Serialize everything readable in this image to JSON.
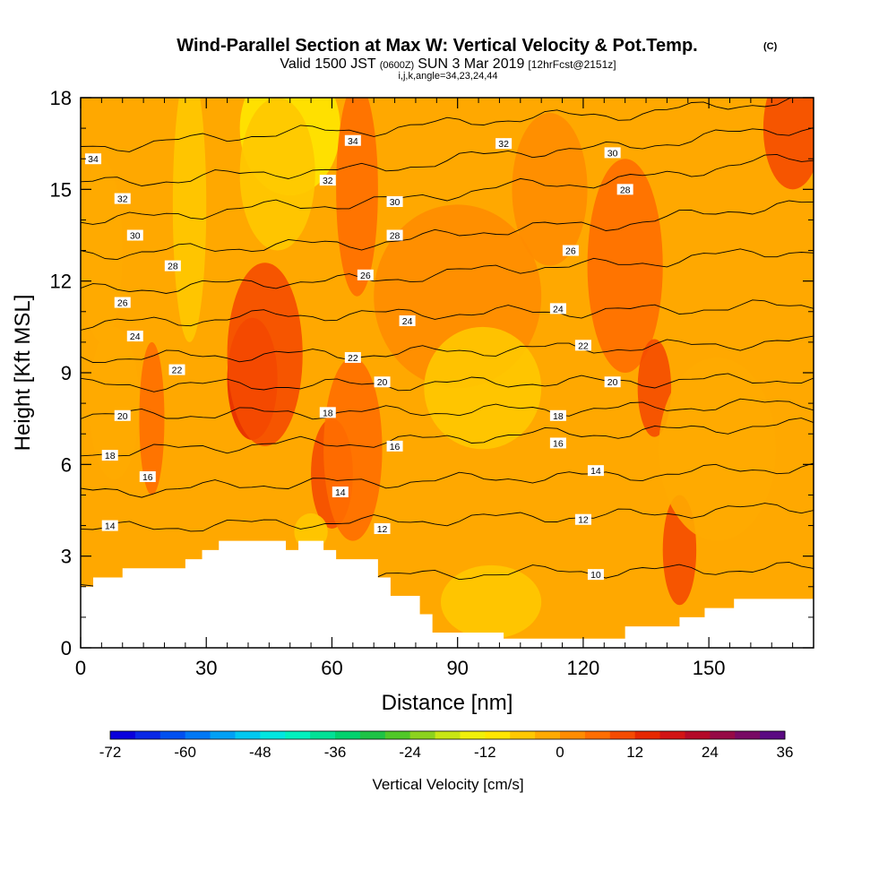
{
  "chart_data": {
    "type": "contour_cross_section",
    "title": "Wind-Parallel Section at Max W: Vertical Velocity & Pot.Temp.",
    "copyright": "(C)",
    "subtitle_prefix": "Valid 1500 JST",
    "subtitle_utc": "(0600Z)",
    "subtitle_date": "SUN 3 Mar 2019",
    "subtitle_forecast": "[12hrFcst@2151z]",
    "subtitle2": "i,j,k,angle=34,23,24,44",
    "xlabel": "Distance [nm]",
    "ylabel": "Height [Kft MSL]",
    "xlim": [
      0,
      175
    ],
    "ylim": [
      0,
      18
    ],
    "xticks": [
      0,
      30,
      60,
      90,
      120,
      150
    ],
    "yticks": [
      0,
      3,
      6,
      9,
      12,
      15,
      18
    ],
    "colorbar": {
      "label": "Vertical Velocity [cm/s]",
      "ticks": [
        -72,
        -60,
        -48,
        -36,
        -24,
        -12,
        0,
        12,
        24,
        36
      ],
      "range": [
        -72,
        36
      ],
      "step": 4,
      "colors": [
        "#0a00dc",
        "#0a28e6",
        "#0050f0",
        "#0078f5",
        "#00a0f5",
        "#00c8f0",
        "#00e6e0",
        "#00f0be",
        "#00e196",
        "#00d26e",
        "#1ec346",
        "#50c828",
        "#8cd21e",
        "#c8e614",
        "#f0f00a",
        "#ffe600",
        "#ffc800",
        "#ffaa00",
        "#ff8c00",
        "#ff6e00",
        "#f54b00",
        "#e62800",
        "#d21414",
        "#b40a28",
        "#960a46",
        "#780a64",
        "#5a0a82"
      ]
    },
    "theta_contours": [
      {
        "value": 10,
        "heights_kft": [
          2.1,
          2.3,
          2.5,
          2.6
        ]
      },
      {
        "value": 12,
        "heights_kft": [
          3.9,
          4.1,
          4.3,
          4.6
        ]
      },
      {
        "value": 14,
        "heights_kft": [
          5.1,
          5.4,
          5.6,
          5.9
        ]
      },
      {
        "value": 16,
        "heights_kft": [
          6.4,
          6.7,
          7.0,
          7.3
        ]
      },
      {
        "value": 18,
        "heights_kft": [
          7.6,
          7.7,
          7.8,
          8.0
        ]
      },
      {
        "value": 20,
        "heights_kft": [
          8.6,
          8.6,
          8.7,
          8.8
        ]
      },
      {
        "value": 22,
        "heights_kft": [
          9.5,
          9.6,
          9.8,
          10.0
        ]
      },
      {
        "value": 24,
        "heights_kft": [
          10.6,
          10.9,
          11.0,
          11.2
        ]
      },
      {
        "value": 26,
        "heights_kft": [
          11.7,
          12.0,
          12.5,
          13.0
        ]
      },
      {
        "value": 28,
        "heights_kft": [
          12.9,
          13.2,
          13.8,
          14.5
        ]
      },
      {
        "value": 30,
        "heights_kft": [
          14.0,
          14.5,
          15.2,
          16.0
        ]
      },
      {
        "value": 32,
        "heights_kft": [
          15.2,
          15.6,
          16.3,
          17.0
        ]
      },
      {
        "value": 34,
        "heights_kft": [
          16.4,
          16.9,
          17.4,
          17.9
        ]
      }
    ],
    "theta_labels": [
      {
        "text": "34",
        "x_nm": 3,
        "y_kft": 16.0
      },
      {
        "text": "32",
        "x_nm": 10,
        "y_kft": 14.7
      },
      {
        "text": "30",
        "x_nm": 13,
        "y_kft": 13.5
      },
      {
        "text": "28",
        "x_nm": 22,
        "y_kft": 12.5
      },
      {
        "text": "26",
        "x_nm": 10,
        "y_kft": 11.3
      },
      {
        "text": "24",
        "x_nm": 13,
        "y_kft": 10.2
      },
      {
        "text": "22",
        "x_nm": 23,
        "y_kft": 9.1
      },
      {
        "text": "20",
        "x_nm": 10,
        "y_kft": 7.6
      },
      {
        "text": "18",
        "x_nm": 7,
        "y_kft": 6.3
      },
      {
        "text": "16",
        "x_nm": 16,
        "y_kft": 5.6
      },
      {
        "text": "14",
        "x_nm": 7,
        "y_kft": 4.0
      },
      {
        "text": "34",
        "x_nm": 65,
        "y_kft": 16.6
      },
      {
        "text": "32",
        "x_nm": 59,
        "y_kft": 15.3
      },
      {
        "text": "30",
        "x_nm": 75,
        "y_kft": 14.6
      },
      {
        "text": "28",
        "x_nm": 75,
        "y_kft": 13.5
      },
      {
        "text": "26",
        "x_nm": 68,
        "y_kft": 12.2
      },
      {
        "text": "24",
        "x_nm": 78,
        "y_kft": 10.7
      },
      {
        "text": "22",
        "x_nm": 65,
        "y_kft": 9.5
      },
      {
        "text": "20",
        "x_nm": 72,
        "y_kft": 8.7
      },
      {
        "text": "18",
        "x_nm": 59,
        "y_kft": 7.7
      },
      {
        "text": "16",
        "x_nm": 75,
        "y_kft": 6.6
      },
      {
        "text": "14",
        "x_nm": 62,
        "y_kft": 5.1
      },
      {
        "text": "12",
        "x_nm": 72,
        "y_kft": 3.9
      },
      {
        "text": "32",
        "x_nm": 101,
        "y_kft": 16.5
      },
      {
        "text": "30",
        "x_nm": 127,
        "y_kft": 16.2
      },
      {
        "text": "28",
        "x_nm": 130,
        "y_kft": 15.0
      },
      {
        "text": "26",
        "x_nm": 117,
        "y_kft": 13.0
      },
      {
        "text": "24",
        "x_nm": 114,
        "y_kft": 11.1
      },
      {
        "text": "22",
        "x_nm": 120,
        "y_kft": 9.9
      },
      {
        "text": "20",
        "x_nm": 127,
        "y_kft": 8.7
      },
      {
        "text": "18",
        "x_nm": 114,
        "y_kft": 7.6
      },
      {
        "text": "16",
        "x_nm": 114,
        "y_kft": 6.7
      },
      {
        "text": "14",
        "x_nm": 123,
        "y_kft": 5.8
      },
      {
        "text": "12",
        "x_nm": 120,
        "y_kft": 4.2
      },
      {
        "text": "10",
        "x_nm": 123,
        "y_kft": 2.4
      }
    ],
    "terrain": {
      "x_nm": [
        0,
        3,
        3,
        10,
        10,
        16,
        16,
        25,
        25,
        27,
        27,
        29,
        29,
        33,
        33,
        49,
        49,
        52,
        52,
        58,
        58,
        61,
        61,
        71,
        71,
        74,
        74,
        81,
        81,
        84,
        84,
        101,
        101,
        103,
        103,
        107,
        107,
        113,
        113,
        117,
        117,
        130,
        130,
        143,
        143,
        149,
        149,
        156,
        156,
        175
      ],
      "height_kft": [
        2.0,
        2.0,
        2.3,
        2.3,
        2.6,
        2.6,
        2.6,
        2.6,
        2.9,
        2.9,
        2.9,
        2.9,
        3.2,
        3.2,
        3.5,
        3.5,
        3.2,
        3.2,
        3.5,
        3.5,
        3.2,
        3.2,
        2.9,
        2.9,
        2.3,
        2.3,
        1.7,
        1.7,
        1.1,
        1.1,
        0.5,
        0.5,
        0.3,
        0.3,
        0.3,
        0.3,
        0.3,
        0.3,
        0.3,
        0.3,
        0.3,
        0.3,
        0.7,
        0.7,
        1.0,
        1.0,
        1.3,
        1.3,
        1.6,
        1.6
      ]
    },
    "w_blobs": [
      {
        "x_nm": 50,
        "y_kft": 17.0,
        "rx_nm": 12,
        "ry_kft": 2.2,
        "w": -12
      },
      {
        "x_nm": 47,
        "y_kft": 15.5,
        "rx_nm": 9,
        "ry_kft": 2.5,
        "w": -8
      },
      {
        "x_nm": 26,
        "y_kft": 14.5,
        "rx_nm": 4,
        "ry_kft": 4.5,
        "w": -5
      },
      {
        "x_nm": 66,
        "y_kft": 15.0,
        "rx_nm": 5,
        "ry_kft": 3.5,
        "w": 6
      },
      {
        "x_nm": 41,
        "y_kft": 8.8,
        "rx_nm": 6,
        "ry_kft": 2.0,
        "w": 14
      },
      {
        "x_nm": 44,
        "y_kft": 9.6,
        "rx_nm": 9,
        "ry_kft": 3.0,
        "w": 8
      },
      {
        "x_nm": 60,
        "y_kft": 5.7,
        "rx_nm": 5,
        "ry_kft": 1.8,
        "w": 10
      },
      {
        "x_nm": 65,
        "y_kft": 6.5,
        "rx_nm": 7,
        "ry_kft": 3.0,
        "w": 6
      },
      {
        "x_nm": 17,
        "y_kft": 7.5,
        "rx_nm": 3,
        "ry_kft": 2.5,
        "w": 6
      },
      {
        "x_nm": 130,
        "y_kft": 12.5,
        "rx_nm": 9,
        "ry_kft": 3.5,
        "w": 6
      },
      {
        "x_nm": 137,
        "y_kft": 8.5,
        "rx_nm": 4,
        "ry_kft": 1.6,
        "w": 8
      },
      {
        "x_nm": 143,
        "y_kft": 3.2,
        "rx_nm": 4,
        "ry_kft": 1.8,
        "w": 10
      },
      {
        "x_nm": 170,
        "y_kft": 17.0,
        "rx_nm": 7,
        "ry_kft": 2.0,
        "w": 10
      },
      {
        "x_nm": 90,
        "y_kft": 11.5,
        "rx_nm": 20,
        "ry_kft": 3.0,
        "w": 2
      },
      {
        "x_nm": 55,
        "y_kft": 3.8,
        "rx_nm": 4,
        "ry_kft": 0.6,
        "w": -6
      },
      {
        "x_nm": 98,
        "y_kft": 1.5,
        "rx_nm": 12,
        "ry_kft": 1.2,
        "w": -5
      },
      {
        "x_nm": 96,
        "y_kft": 8.5,
        "rx_nm": 14,
        "ry_kft": 2.0,
        "w": -5
      },
      {
        "x_nm": 8,
        "y_kft": 8.0,
        "rx_nm": 6,
        "ry_kft": 2.5,
        "w": -4
      },
      {
        "x_nm": 5,
        "y_kft": 13.0,
        "rx_nm": 5,
        "ry_kft": 3.0,
        "w": -3
      },
      {
        "x_nm": 152,
        "y_kft": 6.5,
        "rx_nm": 14,
        "ry_kft": 3.0,
        "w": -3
      },
      {
        "x_nm": 112,
        "y_kft": 15.0,
        "rx_nm": 9,
        "ry_kft": 2.5,
        "w": 2
      }
    ]
  }
}
